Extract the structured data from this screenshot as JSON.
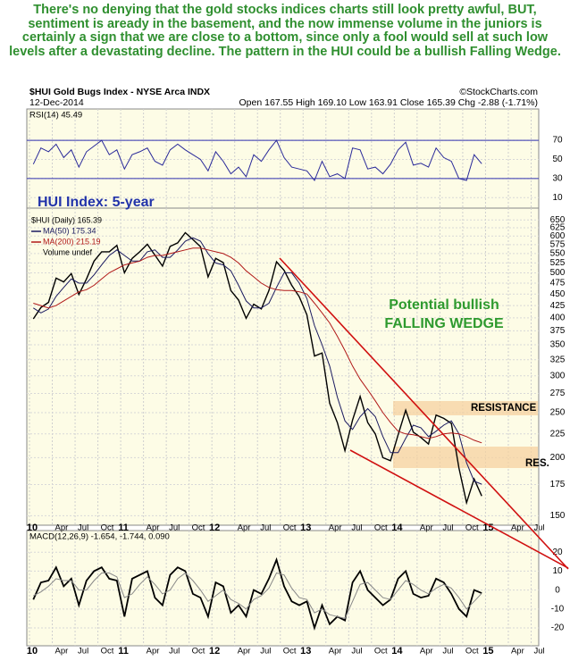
{
  "commentary": "There's no denying that the gold stocks indices charts still look pretty awful, BUT, sentiment is aready in the basement, and the now immense volume in the juniors is certainly a sign that we are close to a bottom, since only a fool would sell at such low levels after a devastating decline. The pattern in the HUI could be a bullish Falling Wedge.",
  "chart_data": {
    "type": "stock",
    "title": "$HUI Gold Bugs Index - NYSE Arca INDX",
    "source": "©StockCharts.com",
    "date": "12-Dec-2014",
    "quote": "Open 167.55  High 169.10  Low 163.91  Close 165.39  Chg -2.88 (-1.71%)",
    "annotations": [
      "HUI Index: 5-year",
      "Potential bullish",
      "FALLING WEDGE",
      "RESISTANCE",
      "RES."
    ],
    "legend_extra": "Volume undef",
    "x": [
      "2010-01",
      "2010-02",
      "2010-03",
      "2010-04",
      "2010-05",
      "2010-06",
      "2010-07",
      "2010-08",
      "2010-09",
      "2010-10",
      "2010-11",
      "2010-12",
      "2011-01",
      "2011-02",
      "2011-03",
      "2011-04",
      "2011-05",
      "2011-06",
      "2011-07",
      "2011-08",
      "2011-09",
      "2011-10",
      "2011-11",
      "2011-12",
      "2012-01",
      "2012-02",
      "2012-03",
      "2012-04",
      "2012-05",
      "2012-06",
      "2012-07",
      "2012-08",
      "2012-09",
      "2012-10",
      "2012-11",
      "2012-12",
      "2013-01",
      "2013-02",
      "2013-03",
      "2013-04",
      "2013-05",
      "2013-06",
      "2013-07",
      "2013-08",
      "2013-09",
      "2013-10",
      "2013-11",
      "2013-12",
      "2014-01",
      "2014-02",
      "2014-03",
      "2014-04",
      "2014-05",
      "2014-06",
      "2014-07",
      "2014-08",
      "2014-09",
      "2014-10",
      "2014-11",
      "2014-12"
    ],
    "xlim": [
      "2010-01",
      "2015-08"
    ],
    "xticks": [
      {
        "value": "2010-01",
        "label": "10"
      },
      {
        "value": "2010-04",
        "label": "Apr"
      },
      {
        "value": "2010-07",
        "label": "Jul"
      },
      {
        "value": "2010-10",
        "label": "Oct"
      },
      {
        "value": "2011-01",
        "label": "11"
      },
      {
        "value": "2011-04",
        "label": "Apr"
      },
      {
        "value": "2011-07",
        "label": "Jul"
      },
      {
        "value": "2011-10",
        "label": "Oct"
      },
      {
        "value": "2012-01",
        "label": "12"
      },
      {
        "value": "2012-04",
        "label": "Apr"
      },
      {
        "value": "2012-07",
        "label": "Jul"
      },
      {
        "value": "2012-10",
        "label": "Oct"
      },
      {
        "value": "2013-01",
        "label": "13"
      },
      {
        "value": "2013-04",
        "label": "Apr"
      },
      {
        "value": "2013-07",
        "label": "Jul"
      },
      {
        "value": "2013-10",
        "label": "Oct"
      },
      {
        "value": "2014-01",
        "label": "14"
      },
      {
        "value": "2014-04",
        "label": "Apr"
      },
      {
        "value": "2014-07",
        "label": "Jul"
      },
      {
        "value": "2014-10",
        "label": "Oct"
      },
      {
        "value": "2015-01",
        "label": "15"
      },
      {
        "value": "2015-04",
        "label": "Apr"
      },
      {
        "value": "2015-07",
        "label": "Jul"
      }
    ],
    "panels": {
      "rsi": {
        "ylim": [
          0,
          100
        ],
        "yticks": [
          10,
          30,
          50,
          70
        ],
        "bands": [
          30,
          70
        ],
        "band_color": "#3030b0",
        "series": [
          {
            "name": "RSI(14) 45.49",
            "color": "#2a2a9a",
            "values": [
              45,
              62,
              58,
              66,
              52,
              60,
              42,
              58,
              64,
              70,
              55,
              60,
              40,
              55,
              58,
              62,
              48,
              44,
              60,
              66,
              60,
              55,
              50,
              38,
              58,
              48,
              35,
              42,
              32,
              55,
              48,
              60,
              70,
              52,
              42,
              40,
              38,
              28,
              48,
              32,
              35,
              30,
              62,
              60,
              40,
              42,
              35,
              45,
              60,
              68,
              44,
              46,
              42,
              62,
              52,
              48,
              30,
              28,
              55,
              45.49
            ]
          }
        ]
      },
      "price": {
        "log_scale": true,
        "ylim": [
          145,
          680
        ],
        "yticks": [
          150,
          175,
          200,
          225,
          250,
          275,
          300,
          325,
          350,
          375,
          400,
          425,
          450,
          475,
          500,
          525,
          550,
          575,
          600,
          625,
          650
        ],
        "series": [
          {
            "name": "$HUI (Daily) 165.39",
            "color": "#000000",
            "width": 1.4,
            "values": [
              398,
              421,
              432,
              487,
              478,
              498,
              449,
              485,
              530,
              555,
              555,
              573,
              500,
              537,
              555,
              576,
              546,
              517,
              570,
              580,
              610,
              590,
              569,
              490,
              537,
              526,
              458,
              437,
              399,
              428,
              418,
              458,
              528,
              506,
              470,
              444,
              406,
              331,
              336,
              262,
              238,
              207,
              241,
              271,
              238,
              225,
              200,
              197,
              224,
              253,
              227,
              221,
              214,
              247,
              243,
              237,
              190,
              160,
              180,
              165.39
            ]
          },
          {
            "name": "MA(50) 175.34",
            "color": "#1a1a60",
            "width": 1,
            "values": [
              420,
              410,
              418,
              445,
              465,
              485,
              475,
              475,
              495,
              520,
              545,
              560,
              545,
              530,
              530,
              555,
              560,
              540,
              540,
              560,
              585,
              595,
              585,
              550,
              525,
              520,
              505,
              470,
              435,
              420,
              420,
              430,
              465,
              500,
              500,
              475,
              440,
              385,
              350,
              315,
              270,
              240,
              230,
              245,
              255,
              245,
              222,
              205,
              205,
              220,
              235,
              232,
              222,
              228,
              235,
              240,
              225,
              195,
              178,
              175.34
            ]
          },
          {
            "name": "MA(200) 215.19",
            "color": "#b01818",
            "width": 1,
            "values": [
              430,
              425,
              420,
              425,
              435,
              445,
              455,
              460,
              470,
              485,
              500,
              510,
              520,
              525,
              530,
              540,
              545,
              545,
              550,
              555,
              560,
              565,
              565,
              560,
              555,
              550,
              540,
              525,
              505,
              490,
              475,
              465,
              460,
              458,
              458,
              455,
              450,
              430,
              410,
              390,
              365,
              340,
              315,
              295,
              280,
              265,
              250,
              238,
              228,
              225,
              224,
              222,
              220,
              222,
              225,
              226,
              225,
              222,
              218,
              215.19
            ]
          }
        ]
      },
      "macd": {
        "ylim": [
          -28,
          30
        ],
        "yticks": [
          -20,
          -10,
          0,
          10,
          20
        ],
        "series": [
          {
            "name": "MACD(12,26,9) -1.654, -1.744, 0.090",
            "color": "#000000",
            "width": 1.8,
            "values": [
              -5,
              4,
              5,
              12,
              2,
              6,
              -8,
              5,
              10,
              12,
              6,
              5,
              -14,
              6,
              8,
              10,
              -4,
              -8,
              8,
              12,
              10,
              -2,
              -4,
              -14,
              4,
              2,
              -12,
              -8,
              -14,
              0,
              -2,
              6,
              16,
              2,
              -6,
              -8,
              -6,
              -20,
              -8,
              -18,
              -14,
              -16,
              4,
              10,
              0,
              -4,
              -8,
              -5,
              6,
              10,
              -2,
              -4,
              -3,
              6,
              4,
              -2,
              -10,
              -14,
              0,
              -1.654
            ]
          },
          {
            "name": "Signal",
            "color": "#888888",
            "width": 1,
            "values": [
              -3,
              -1,
              2,
              6,
              5,
              5,
              0,
              0,
              5,
              9,
              9,
              7,
              -4,
              -2,
              3,
              7,
              3,
              -2,
              0,
              6,
              9,
              5,
              0,
              -6,
              -3,
              0,
              -5,
              -7,
              -10,
              -5,
              -3,
              1,
              9,
              8,
              1,
              -4,
              -5,
              -12,
              -10,
              -13,
              -14,
              -15,
              -6,
              3,
              4,
              0,
              -4,
              -5,
              0,
              5,
              3,
              0,
              -2,
              1,
              3,
              1,
              -4,
              -10,
              -6,
              -1.744
            ]
          }
        ]
      }
    }
  }
}
